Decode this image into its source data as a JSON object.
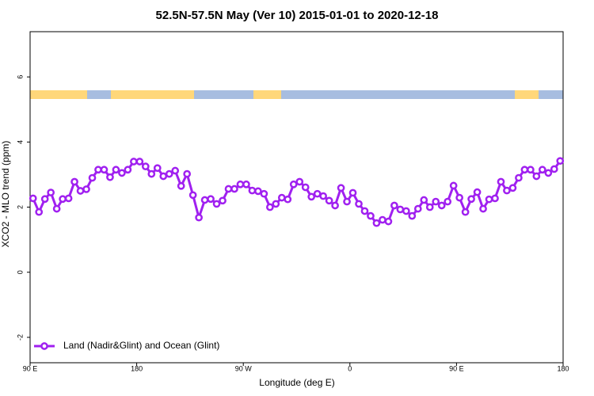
{
  "chart_data": {
    "type": "line",
    "title": "52.5N-57.5N May (Ver 10)   2015-01-01 to 2020-12-18",
    "x_label": "Longitude (deg E)",
    "y_label": "XCO2 - MLO trend (ppm)",
    "xlim": [
      90,
      540
    ],
    "ylim": [
      -2.78,
      7.39
    ],
    "xticks": [
      {
        "value": 90,
        "label": "90 E"
      },
      180,
      {
        "value": 270,
        "label": "90 W"
      },
      {
        "value": 360,
        "label": "0"
      },
      {
        "value": 450,
        "label": "90 E"
      },
      {
        "value": 540,
        "label": "180"
      }
    ],
    "yticks": [
      -2,
      0,
      2,
      4,
      6
    ],
    "legend_position": "bottomleft",
    "x": [
      92.5,
      97.5,
      102.5,
      107.5,
      112.5,
      117.5,
      122.5,
      127.5,
      132.5,
      137.5,
      142.5,
      147.5,
      152.5,
      157.5,
      162.5,
      167.5,
      172.5,
      177.5,
      182.5,
      187.5,
      192.5,
      197.5,
      202.5,
      207.5,
      212.5,
      217.5,
      222.5,
      227.5,
      232.5,
      237.5,
      242.5,
      247.5,
      252.5,
      257.5,
      262.5,
      267.5,
      272.5,
      277.5,
      282.5,
      287.5,
      292.5,
      297.5,
      302.5,
      307.5,
      312.5,
      317.5,
      322.5,
      327.5,
      332.5,
      337.5,
      342.5,
      347.5,
      352.5,
      357.5,
      362.5,
      367.5,
      372.5,
      377.5,
      382.5,
      387.5,
      392.5,
      397.5,
      402.5,
      407.5,
      412.5,
      417.5,
      422.5,
      427.5,
      432.5,
      437.5,
      442.5,
      447.5,
      452.5,
      457.5,
      462.5,
      467.5,
      472.5,
      477.5,
      482.5,
      487.5,
      492.5,
      497.5,
      502.5,
      507.5,
      512.5,
      517.5,
      522.5,
      527.5,
      532.5,
      537.5
    ],
    "series": [
      {
        "name": "Land (Nadir&Glint) and Ocean (Glint)",
        "color": "#a020f0",
        "values": [
          2.27,
          1.85,
          2.25,
          2.45,
          1.95,
          2.25,
          2.27,
          2.78,
          2.5,
          2.55,
          2.9,
          3.15,
          3.15,
          2.92,
          3.15,
          3.05,
          3.15,
          3.4,
          3.4,
          3.25,
          3.02,
          3.2,
          2.95,
          3.02,
          3.12,
          2.65,
          3.02,
          2.37,
          1.68,
          2.22,
          2.25,
          2.1,
          2.2,
          2.56,
          2.56,
          2.7,
          2.7,
          2.51,
          2.49,
          2.41,
          2.0,
          2.1,
          2.29,
          2.24,
          2.7,
          2.78,
          2.61,
          2.32,
          2.41,
          2.34,
          2.2,
          2.05,
          2.59,
          2.17,
          2.44,
          2.1,
          1.88,
          1.73,
          1.51,
          1.61,
          1.56,
          2.05,
          1.93,
          1.88,
          1.73,
          1.95,
          2.22,
          2.0,
          2.17,
          2.05,
          2.17,
          2.66,
          2.29,
          1.85,
          2.25,
          2.46,
          1.95,
          2.24,
          2.27,
          2.78,
          2.51,
          2.59,
          2.9,
          3.15,
          3.15,
          2.95,
          3.15,
          3.05,
          3.17,
          3.42
        ]
      }
    ]
  }
}
